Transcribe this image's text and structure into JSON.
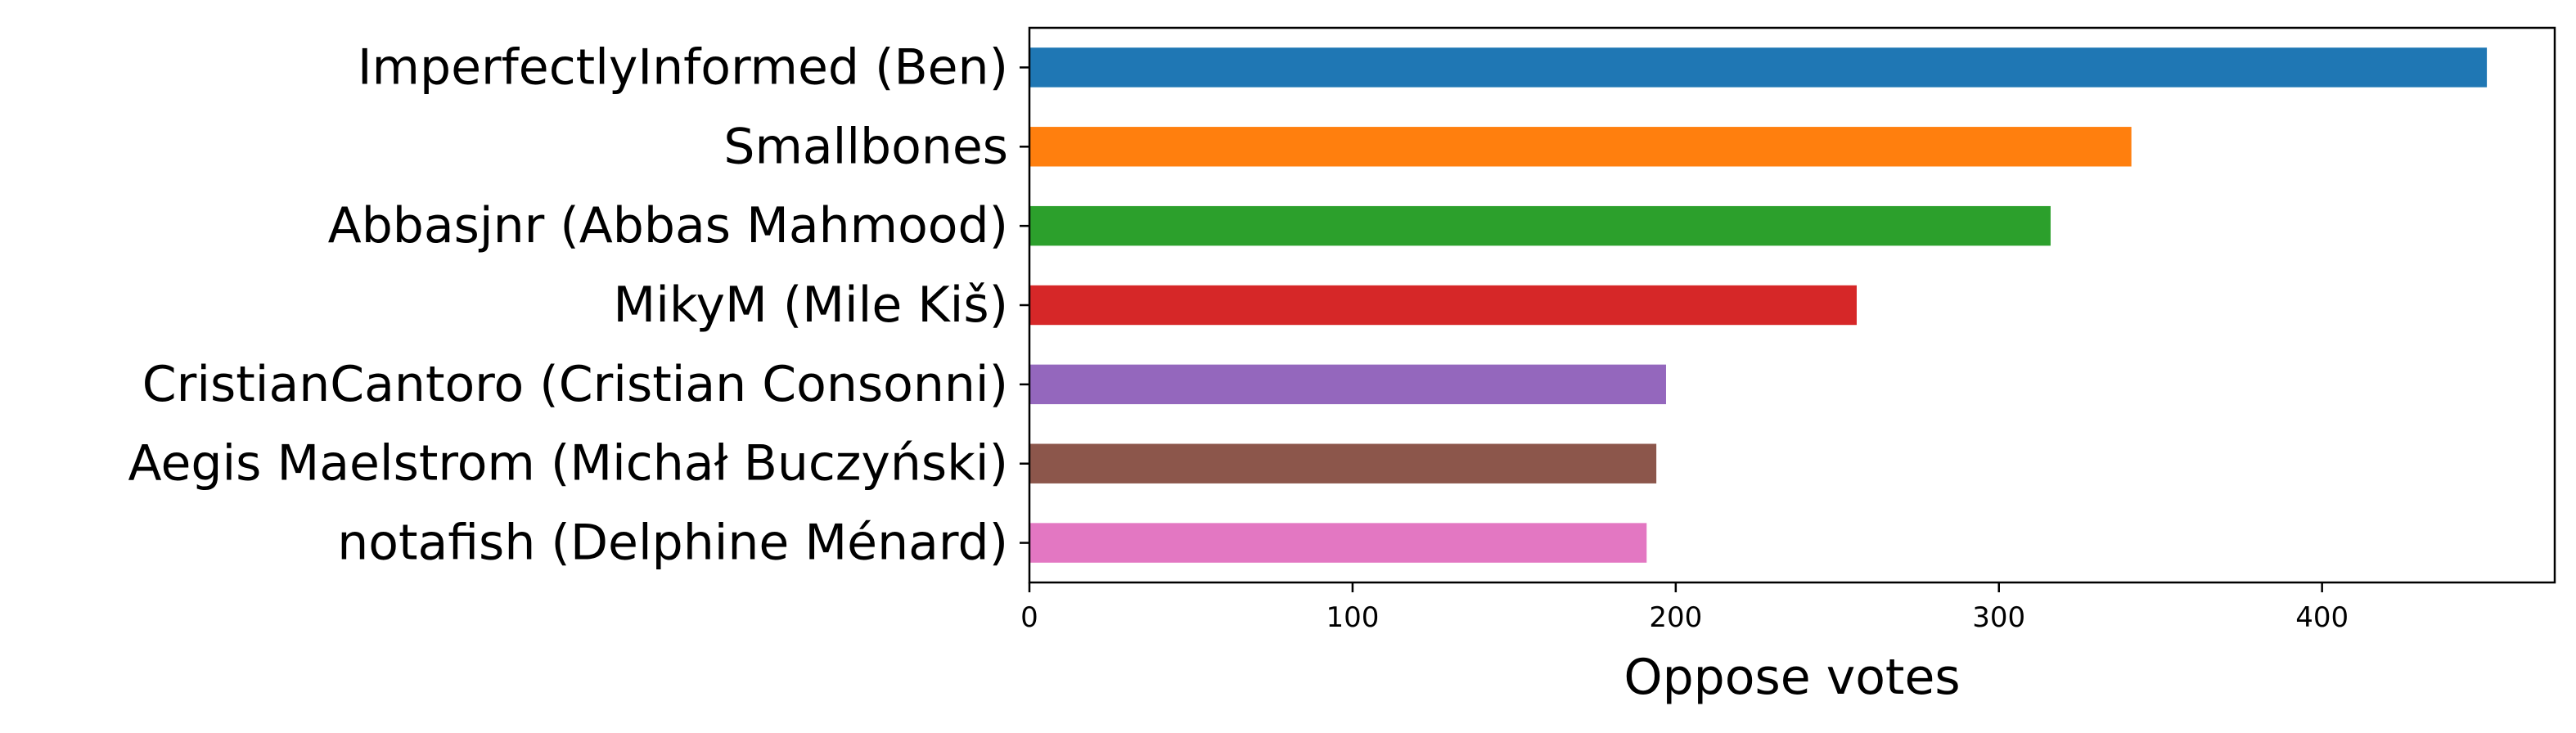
{
  "chart_data": {
    "type": "bar",
    "orientation": "horizontal",
    "title": "",
    "xlabel": "Oppose votes",
    "ylabel": "",
    "xlim": [
      0,
      472
    ],
    "xticks": [
      0,
      100,
      200,
      300,
      400
    ],
    "grid": false,
    "legend": "none",
    "categories": [
      "ImperfectlyInformed (Ben)",
      "Smallbones",
      "Abbasjnr (Abbas Mahmood)",
      "MikyM (Mile Kiš)",
      "CristianCantoro (Cristian Consonni)",
      "Aegis Maelstrom (Michał Buczyński)",
      "notafish (Delphine Ménard)"
    ],
    "values": [
      451,
      341,
      316,
      256,
      197,
      194,
      191
    ],
    "colors": [
      "#1f77b4",
      "#ff7f0e",
      "#2ca02c",
      "#d62728",
      "#9467bd",
      "#8c564b",
      "#e377c2"
    ]
  }
}
